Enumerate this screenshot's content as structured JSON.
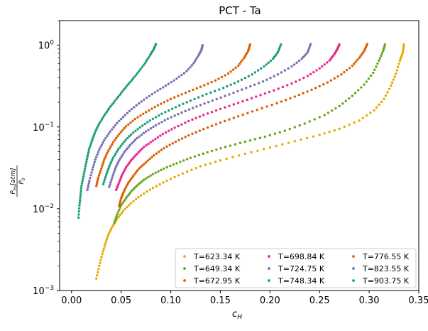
{
  "chart_data": {
    "type": "scatter",
    "title": "PCT - Ta",
    "xlabel_main": "c",
    "xlabel_sub": "H",
    "ylabel": {
      "num_main": "P",
      "num_sub": "H₂",
      "num_units": "[atm]",
      "den_main": "P",
      "den_sub": "0"
    },
    "x_scale": "linear",
    "y_scale": "log",
    "xlim": [
      -0.012,
      0.35
    ],
    "ylim": [
      0.001,
      2.0
    ],
    "x_ticks": [
      {
        "value": 0.0,
        "label": "0.00"
      },
      {
        "value": 0.05,
        "label": "0.05"
      },
      {
        "value": 0.1,
        "label": "0.10"
      },
      {
        "value": 0.15,
        "label": "0.15"
      },
      {
        "value": 0.2,
        "label": "0.20"
      },
      {
        "value": 0.25,
        "label": "0.25"
      },
      {
        "value": 0.3,
        "label": "0.30"
      },
      {
        "value": 0.35,
        "label": "0.35"
      }
    ],
    "y_ticks": [
      {
        "value": 0.001,
        "base": "10",
        "exp": "−3"
      },
      {
        "value": 0.01,
        "base": "10",
        "exp": "−2"
      },
      {
        "value": 0.1,
        "base": "10",
        "exp": "−1"
      },
      {
        "value": 1.0,
        "base": "10",
        "exp": "0"
      }
    ],
    "grid": false,
    "legend_position": "lower-right",
    "legend_columns": 3,
    "series": [
      {
        "name": "T=623.34 K",
        "color": "#e6ab02",
        "points": [
          [
            0.025,
            0.0014
          ],
          [
            0.028,
            0.002
          ],
          [
            0.031,
            0.0028
          ],
          [
            0.034,
            0.0037
          ],
          [
            0.037,
            0.0048
          ],
          [
            0.041,
            0.006
          ],
          [
            0.046,
            0.0075
          ],
          [
            0.052,
            0.0094
          ],
          [
            0.06,
            0.0117
          ],
          [
            0.07,
            0.0146
          ],
          [
            0.082,
            0.018
          ],
          [
            0.096,
            0.022
          ],
          [
            0.112,
            0.027
          ],
          [
            0.13,
            0.033
          ],
          [
            0.15,
            0.039
          ],
          [
            0.175,
            0.047
          ],
          [
            0.2,
            0.056
          ],
          [
            0.225,
            0.067
          ],
          [
            0.25,
            0.08
          ],
          [
            0.27,
            0.095
          ],
          [
            0.29,
            0.12
          ],
          [
            0.305,
            0.16
          ],
          [
            0.315,
            0.22
          ],
          [
            0.322,
            0.32
          ],
          [
            0.327,
            0.45
          ],
          [
            0.331,
            0.65
          ],
          [
            0.334,
            0.82
          ],
          [
            0.335,
            1.02
          ]
        ]
      },
      {
        "name": "T=649.34 K",
        "color": "#66a61e",
        "points": [
          [
            0.043,
            0.0067
          ],
          [
            0.046,
            0.0085
          ],
          [
            0.05,
            0.011
          ],
          [
            0.055,
            0.0135
          ],
          [
            0.06,
            0.0162
          ],
          [
            0.066,
            0.0192
          ],
          [
            0.073,
            0.0226
          ],
          [
            0.082,
            0.0265
          ],
          [
            0.093,
            0.031
          ],
          [
            0.106,
            0.036
          ],
          [
            0.12,
            0.042
          ],
          [
            0.137,
            0.049
          ],
          [
            0.155,
            0.057
          ],
          [
            0.175,
            0.066
          ],
          [
            0.195,
            0.076
          ],
          [
            0.215,
            0.09
          ],
          [
            0.235,
            0.11
          ],
          [
            0.255,
            0.14
          ],
          [
            0.27,
            0.18
          ],
          [
            0.283,
            0.24
          ],
          [
            0.295,
            0.33
          ],
          [
            0.304,
            0.46
          ],
          [
            0.31,
            0.65
          ],
          [
            0.314,
            0.85
          ],
          [
            0.316,
            1.02
          ]
        ]
      },
      {
        "name": "T=672.95 K",
        "color": "#d95f02",
        "points": [
          [
            0.048,
            0.0108
          ],
          [
            0.05,
            0.0135
          ],
          [
            0.053,
            0.0165
          ],
          [
            0.057,
            0.0205
          ],
          [
            0.062,
            0.025
          ],
          [
            0.068,
            0.031
          ],
          [
            0.075,
            0.037
          ],
          [
            0.083,
            0.045
          ],
          [
            0.093,
            0.055
          ],
          [
            0.105,
            0.066
          ],
          [
            0.118,
            0.079
          ],
          [
            0.133,
            0.094
          ],
          [
            0.15,
            0.113
          ],
          [
            0.168,
            0.135
          ],
          [
            0.187,
            0.162
          ],
          [
            0.207,
            0.195
          ],
          [
            0.225,
            0.235
          ],
          [
            0.242,
            0.285
          ],
          [
            0.258,
            0.35
          ],
          [
            0.272,
            0.44
          ],
          [
            0.283,
            0.56
          ],
          [
            0.29,
            0.7
          ],
          [
            0.295,
            0.85
          ],
          [
            0.298,
            1.03
          ]
        ]
      },
      {
        "name": "T=698.84 K",
        "color": "#e7298a",
        "points": [
          [
            0.045,
            0.017
          ],
          [
            0.048,
            0.021
          ],
          [
            0.051,
            0.026
          ],
          [
            0.055,
            0.032
          ],
          [
            0.06,
            0.039
          ],
          [
            0.066,
            0.047
          ],
          [
            0.073,
            0.057
          ],
          [
            0.082,
            0.068
          ],
          [
            0.092,
            0.082
          ],
          [
            0.104,
            0.098
          ],
          [
            0.118,
            0.118
          ],
          [
            0.133,
            0.14
          ],
          [
            0.15,
            0.166
          ],
          [
            0.168,
            0.197
          ],
          [
            0.186,
            0.235
          ],
          [
            0.204,
            0.28
          ],
          [
            0.222,
            0.34
          ],
          [
            0.238,
            0.42
          ],
          [
            0.25,
            0.52
          ],
          [
            0.26,
            0.65
          ],
          [
            0.265,
            0.78
          ],
          [
            0.268,
            0.9
          ],
          [
            0.27,
            1.02
          ]
        ]
      },
      {
        "name": "T=724.75 K",
        "color": "#7570b3",
        "points": [
          [
            0.038,
            0.0185
          ],
          [
            0.041,
            0.024
          ],
          [
            0.044,
            0.031
          ],
          [
            0.048,
            0.039
          ],
          [
            0.053,
            0.049
          ],
          [
            0.059,
            0.06
          ],
          [
            0.066,
            0.073
          ],
          [
            0.075,
            0.088
          ],
          [
            0.085,
            0.105
          ],
          [
            0.097,
            0.126
          ],
          [
            0.111,
            0.15
          ],
          [
            0.126,
            0.178
          ],
          [
            0.142,
            0.21
          ],
          [
            0.159,
            0.25
          ],
          [
            0.176,
            0.3
          ],
          [
            0.193,
            0.36
          ],
          [
            0.208,
            0.44
          ],
          [
            0.222,
            0.55
          ],
          [
            0.232,
            0.68
          ],
          [
            0.238,
            0.82
          ],
          [
            0.241,
            1.03
          ]
        ]
      },
      {
        "name": "T=748.34 K",
        "color": "#1b9e77",
        "points": [
          [
            0.032,
            0.02
          ],
          [
            0.035,
            0.026
          ],
          [
            0.038,
            0.033
          ],
          [
            0.042,
            0.042
          ],
          [
            0.047,
            0.053
          ],
          [
            0.053,
            0.066
          ],
          [
            0.06,
            0.081
          ],
          [
            0.069,
            0.099
          ],
          [
            0.079,
            0.12
          ],
          [
            0.091,
            0.145
          ],
          [
            0.105,
            0.175
          ],
          [
            0.12,
            0.21
          ],
          [
            0.136,
            0.252
          ],
          [
            0.153,
            0.3
          ],
          [
            0.168,
            0.36
          ],
          [
            0.182,
            0.44
          ],
          [
            0.194,
            0.55
          ],
          [
            0.203,
            0.68
          ],
          [
            0.208,
            0.82
          ],
          [
            0.211,
            1.02
          ]
        ]
      },
      {
        "name": "T=776.55 K",
        "color": "#d95f02",
        "points": [
          [
            0.025,
            0.019
          ],
          [
            0.027,
            0.024
          ],
          [
            0.03,
            0.031
          ],
          [
            0.033,
            0.04
          ],
          [
            0.037,
            0.051
          ],
          [
            0.042,
            0.065
          ],
          [
            0.048,
            0.082
          ],
          [
            0.055,
            0.102
          ],
          [
            0.064,
            0.125
          ],
          [
            0.075,
            0.152
          ],
          [
            0.087,
            0.184
          ],
          [
            0.1,
            0.22
          ],
          [
            0.115,
            0.262
          ],
          [
            0.13,
            0.31
          ],
          [
            0.145,
            0.37
          ],
          [
            0.158,
            0.45
          ],
          [
            0.168,
            0.56
          ],
          [
            0.174,
            0.7
          ],
          [
            0.178,
            0.85
          ],
          [
            0.18,
            1.02
          ]
        ]
      },
      {
        "name": "T=823.55 K",
        "color": "#7570b3",
        "points": [
          [
            0.016,
            0.017
          ],
          [
            0.018,
            0.022
          ],
          [
            0.021,
            0.03
          ],
          [
            0.024,
            0.04
          ],
          [
            0.028,
            0.053
          ],
          [
            0.033,
            0.069
          ],
          [
            0.039,
            0.088
          ],
          [
            0.046,
            0.112
          ],
          [
            0.054,
            0.14
          ],
          [
            0.063,
            0.175
          ],
          [
            0.073,
            0.216
          ],
          [
            0.084,
            0.265
          ],
          [
            0.095,
            0.32
          ],
          [
            0.106,
            0.39
          ],
          [
            0.116,
            0.48
          ],
          [
            0.123,
            0.6
          ],
          [
            0.128,
            0.75
          ],
          [
            0.131,
            0.88
          ],
          [
            0.132,
            1.0
          ]
        ]
      },
      {
        "name": "T=903.75 K",
        "color": "#1b9e77",
        "points": [
          [
            0.007,
            0.0078
          ],
          [
            0.008,
            0.011
          ],
          [
            0.009,
            0.0145
          ],
          [
            0.01,
            0.019
          ],
          [
            0.012,
            0.025
          ],
          [
            0.014,
            0.033
          ],
          [
            0.016,
            0.043
          ],
          [
            0.018,
            0.055
          ],
          [
            0.021,
            0.07
          ],
          [
            0.024,
            0.088
          ],
          [
            0.028,
            0.11
          ],
          [
            0.033,
            0.138
          ],
          [
            0.038,
            0.17
          ],
          [
            0.044,
            0.21
          ],
          [
            0.05,
            0.26
          ],
          [
            0.056,
            0.32
          ],
          [
            0.062,
            0.39
          ],
          [
            0.068,
            0.48
          ],
          [
            0.074,
            0.6
          ],
          [
            0.079,
            0.75
          ],
          [
            0.083,
            0.9
          ],
          [
            0.085,
            1.03
          ]
        ]
      }
    ]
  }
}
